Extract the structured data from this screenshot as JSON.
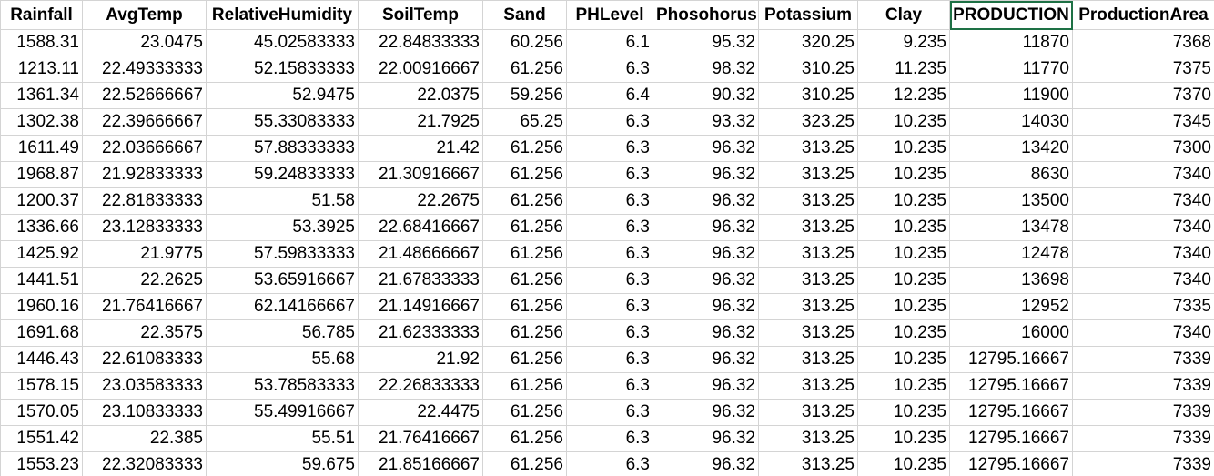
{
  "headers": [
    "Rainfall",
    "AvgTemp",
    "RelativeHumidity",
    "SoilTemp",
    "Sand",
    "PHLevel",
    "Phosohorus",
    "Potassium",
    "Clay",
    "PRODUCTION",
    "ProductionArea"
  ],
  "rows": [
    [
      "1588.31",
      "23.0475",
      "45.02583333",
      "22.84833333",
      "60.256",
      "6.1",
      "95.32",
      "320.25",
      "9.235",
      "11870",
      "7368"
    ],
    [
      "1213.11",
      "22.49333333",
      "52.15833333",
      "22.00916667",
      "61.256",
      "6.3",
      "98.32",
      "310.25",
      "11.235",
      "11770",
      "7375"
    ],
    [
      "1361.34",
      "22.52666667",
      "52.9475",
      "22.0375",
      "59.256",
      "6.4",
      "90.32",
      "310.25",
      "12.235",
      "11900",
      "7370"
    ],
    [
      "1302.38",
      "22.39666667",
      "55.33083333",
      "21.7925",
      "65.25",
      "6.3",
      "93.32",
      "323.25",
      "10.235",
      "14030",
      "7345"
    ],
    [
      "1611.49",
      "22.03666667",
      "57.88333333",
      "21.42",
      "61.256",
      "6.3",
      "96.32",
      "313.25",
      "10.235",
      "13420",
      "7300"
    ],
    [
      "1968.87",
      "21.92833333",
      "59.24833333",
      "21.30916667",
      "61.256",
      "6.3",
      "96.32",
      "313.25",
      "10.235",
      "8630",
      "7340"
    ],
    [
      "1200.37",
      "22.81833333",
      "51.58",
      "22.2675",
      "61.256",
      "6.3",
      "96.32",
      "313.25",
      "10.235",
      "13500",
      "7340"
    ],
    [
      "1336.66",
      "23.12833333",
      "53.3925",
      "22.68416667",
      "61.256",
      "6.3",
      "96.32",
      "313.25",
      "10.235",
      "13478",
      "7340"
    ],
    [
      "1425.92",
      "21.9775",
      "57.59833333",
      "21.48666667",
      "61.256",
      "6.3",
      "96.32",
      "313.25",
      "10.235",
      "12478",
      "7340"
    ],
    [
      "1441.51",
      "22.2625",
      "53.65916667",
      "21.67833333",
      "61.256",
      "6.3",
      "96.32",
      "313.25",
      "10.235",
      "13698",
      "7340"
    ],
    [
      "1960.16",
      "21.76416667",
      "62.14166667",
      "21.14916667",
      "61.256",
      "6.3",
      "96.32",
      "313.25",
      "10.235",
      "12952",
      "7335"
    ],
    [
      "1691.68",
      "22.3575",
      "56.785",
      "21.62333333",
      "61.256",
      "6.3",
      "96.32",
      "313.25",
      "10.235",
      "16000",
      "7340"
    ],
    [
      "1446.43",
      "22.61083333",
      "55.68",
      "21.92",
      "61.256",
      "6.3",
      "96.32",
      "313.25",
      "10.235",
      "12795.16667",
      "7339"
    ],
    [
      "1578.15",
      "23.03583333",
      "53.78583333",
      "22.26833333",
      "61.256",
      "6.3",
      "96.32",
      "313.25",
      "10.235",
      "12795.16667",
      "7339"
    ],
    [
      "1570.05",
      "23.10833333",
      "55.49916667",
      "22.4475",
      "61.256",
      "6.3",
      "96.32",
      "313.25",
      "10.235",
      "12795.16667",
      "7339"
    ],
    [
      "1551.42",
      "22.385",
      "55.51",
      "21.76416667",
      "61.256",
      "6.3",
      "96.32",
      "313.25",
      "10.235",
      "12795.16667",
      "7339"
    ],
    [
      "1553.23",
      "22.32083333",
      "59.675",
      "21.85166667",
      "61.256",
      "6.3",
      "96.32",
      "313.25",
      "10.235",
      "12795.16667",
      "7339"
    ]
  ],
  "colors": {
    "gridline": "#d4d4d4",
    "selection": "#1e7145"
  }
}
